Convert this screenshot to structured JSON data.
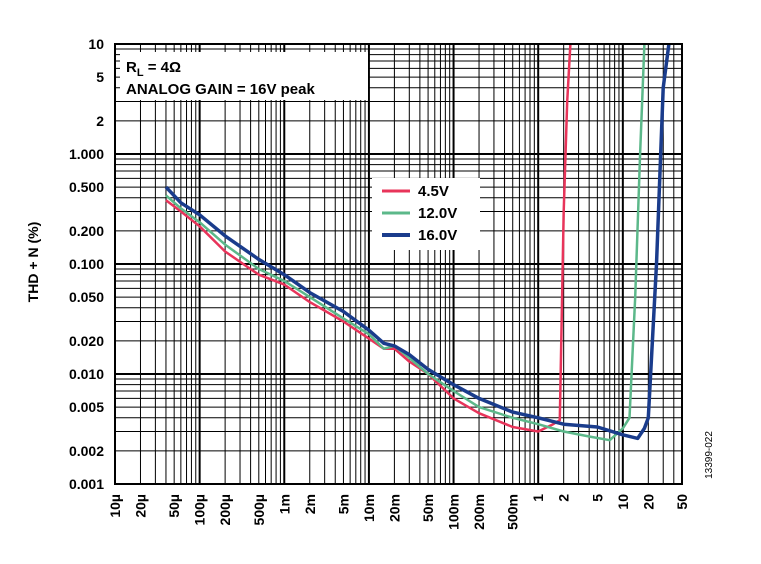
{
  "chart_data": {
    "type": "line",
    "ylabel": "THD + N (%)",
    "xlabel": "",
    "x_scale": "log",
    "y_scale": "log",
    "xlim": [
      1e-05,
      50
    ],
    "ylim": [
      0.001,
      10
    ],
    "grid": true,
    "legend_placement": "center",
    "x_tick_values": [
      1e-05,
      2e-05,
      5e-05,
      0.0001,
      0.0002,
      0.0005,
      0.001,
      0.002,
      0.005,
      0.01,
      0.02,
      0.05,
      0.1,
      0.2,
      0.5,
      1,
      2,
      5,
      10,
      20,
      50
    ],
    "x_tick_labels": [
      "10µ",
      "20µ",
      "50µ",
      "100µ",
      "200µ",
      "500µ",
      "1m",
      "2m",
      "5m",
      "10m",
      "20m",
      "50m",
      "100m",
      "200m",
      "500m",
      "1",
      "2",
      "5",
      "10",
      "20",
      "50"
    ],
    "y_tick_values": [
      0.001,
      0.002,
      0.005,
      0.01,
      0.02,
      0.05,
      0.1,
      0.2,
      0.5,
      1,
      2,
      5,
      10
    ],
    "y_tick_labels": [
      "0.001",
      "0.002",
      "0.005",
      "0.010",
      "0.020",
      "0.050",
      "0.100",
      "0.200",
      "0.500",
      "1.000",
      "2",
      "5",
      "10"
    ],
    "annotation": {
      "line1_main": "R",
      "line1_sub": "L",
      "line1_rest": " = 4Ω",
      "line2": "ANALOG GAIN = 16V peak"
    },
    "figure_id": "13399-022",
    "series": [
      {
        "name": "4.5V",
        "color": "#e8345a",
        "x": [
          4e-05,
          6e-05,
          0.0001,
          0.0002,
          0.0005,
          0.001,
          0.002,
          0.005,
          0.01,
          0.015,
          0.02,
          0.03,
          0.05,
          0.1,
          0.2,
          0.5,
          1,
          1.5,
          1.8,
          2.0,
          2.2,
          2.4
        ],
        "y": [
          0.38,
          0.3,
          0.22,
          0.13,
          0.08,
          0.065,
          0.045,
          0.03,
          0.021,
          0.017,
          0.017,
          0.013,
          0.01,
          0.006,
          0.0044,
          0.0033,
          0.003,
          0.0035,
          0.0038,
          0.3,
          3.0,
          10
        ]
      },
      {
        "name": "12.0V",
        "color": "#5cb88a",
        "x": [
          4e-05,
          6e-05,
          0.0001,
          0.0002,
          0.0005,
          0.001,
          0.002,
          0.005,
          0.01,
          0.015,
          0.02,
          0.03,
          0.05,
          0.1,
          0.2,
          0.5,
          1,
          2,
          4,
          7,
          10,
          12,
          14,
          16,
          18
        ],
        "y": [
          0.42,
          0.32,
          0.24,
          0.15,
          0.09,
          0.07,
          0.05,
          0.032,
          0.023,
          0.017,
          0.018,
          0.014,
          0.01,
          0.007,
          0.005,
          0.004,
          0.0035,
          0.003,
          0.0027,
          0.0025,
          0.0032,
          0.004,
          0.05,
          1.0,
          10
        ]
      },
      {
        "name": "16.0V",
        "color": "#1a3c8c",
        "x": [
          4e-05,
          6e-05,
          0.0001,
          0.0002,
          0.0005,
          0.001,
          0.002,
          0.005,
          0.01,
          0.015,
          0.02,
          0.03,
          0.05,
          0.1,
          0.2,
          0.5,
          1,
          2,
          5,
          10,
          15,
          18,
          20,
          25,
          30,
          35
        ],
        "y": [
          0.5,
          0.36,
          0.28,
          0.18,
          0.11,
          0.08,
          0.055,
          0.037,
          0.025,
          0.019,
          0.018,
          0.015,
          0.011,
          0.008,
          0.006,
          0.0045,
          0.004,
          0.0035,
          0.0033,
          0.0028,
          0.0026,
          0.0032,
          0.004,
          0.1,
          4.0,
          10
        ]
      }
    ]
  }
}
